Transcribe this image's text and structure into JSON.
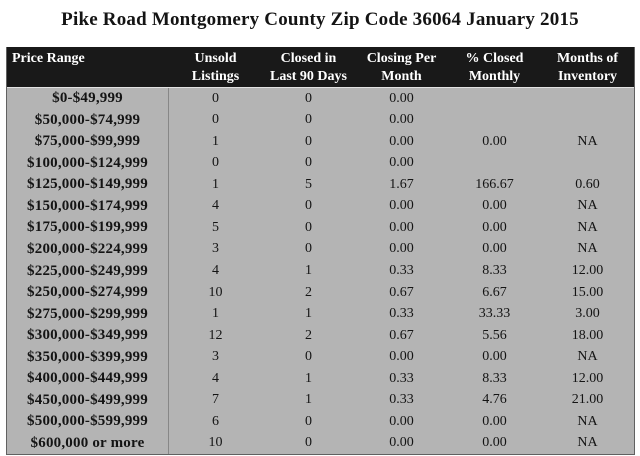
{
  "title": "Pike Road Montgomery County Zip Code 36064 January 2015",
  "colors": {
    "header_bg": "#191919",
    "header_text": "#ffffff",
    "row_bg": "#b4b4b4",
    "divider": "#878787",
    "outer_border": "#616161",
    "page_bg": "#ffffff"
  },
  "chart_data": {
    "type": "table",
    "title": "Pike Road Montgomery County Zip Code 36064 January 2015",
    "columns": [
      "Price Range",
      "Unsold\nListings",
      "Closed in\nLast 90 Days",
      "Closing Per\nMonth",
      "% Closed\nMonthly",
      "Months of\nInventory"
    ],
    "rows": [
      [
        "$0-$49,999",
        "0",
        "0",
        "0.00",
        "",
        ""
      ],
      [
        "$50,000-$74,999",
        "0",
        "0",
        "0.00",
        "",
        ""
      ],
      [
        "$75,000-$99,999",
        "1",
        "0",
        "0.00",
        "0.00",
        "NA"
      ],
      [
        "$100,000-$124,999",
        "0",
        "0",
        "0.00",
        "",
        ""
      ],
      [
        "$125,000-$149,999",
        "1",
        "5",
        "1.67",
        "166.67",
        "0.60"
      ],
      [
        "$150,000-$174,999",
        "4",
        "0",
        "0.00",
        "0.00",
        "NA"
      ],
      [
        "$175,000-$199,999",
        "5",
        "0",
        "0.00",
        "0.00",
        "NA"
      ],
      [
        "$200,000-$224,999",
        "3",
        "0",
        "0.00",
        "0.00",
        "NA"
      ],
      [
        "$225,000-$249,999",
        "4",
        "1",
        "0.33",
        "8.33",
        "12.00"
      ],
      [
        "$250,000-$274,999",
        "10",
        "2",
        "0.67",
        "6.67",
        "15.00"
      ],
      [
        "$275,000-$299,999",
        "1",
        "1",
        "0.33",
        "33.33",
        "3.00"
      ],
      [
        "$300,000-$349,999",
        "12",
        "2",
        "0.67",
        "5.56",
        "18.00"
      ],
      [
        "$350,000-$399,999",
        "3",
        "0",
        "0.00",
        "0.00",
        "NA"
      ],
      [
        "$400,000-$449,999",
        "4",
        "1",
        "0.33",
        "8.33",
        "12.00"
      ],
      [
        "$450,000-$499,999",
        "7",
        "1",
        "0.33",
        "4.76",
        "21.00"
      ],
      [
        "$500,000-$599,999",
        "6",
        "0",
        "0.00",
        "0.00",
        "NA"
      ],
      [
        "$600,000 or more",
        "10",
        "0",
        "0.00",
        "0.00",
        "NA"
      ]
    ]
  }
}
